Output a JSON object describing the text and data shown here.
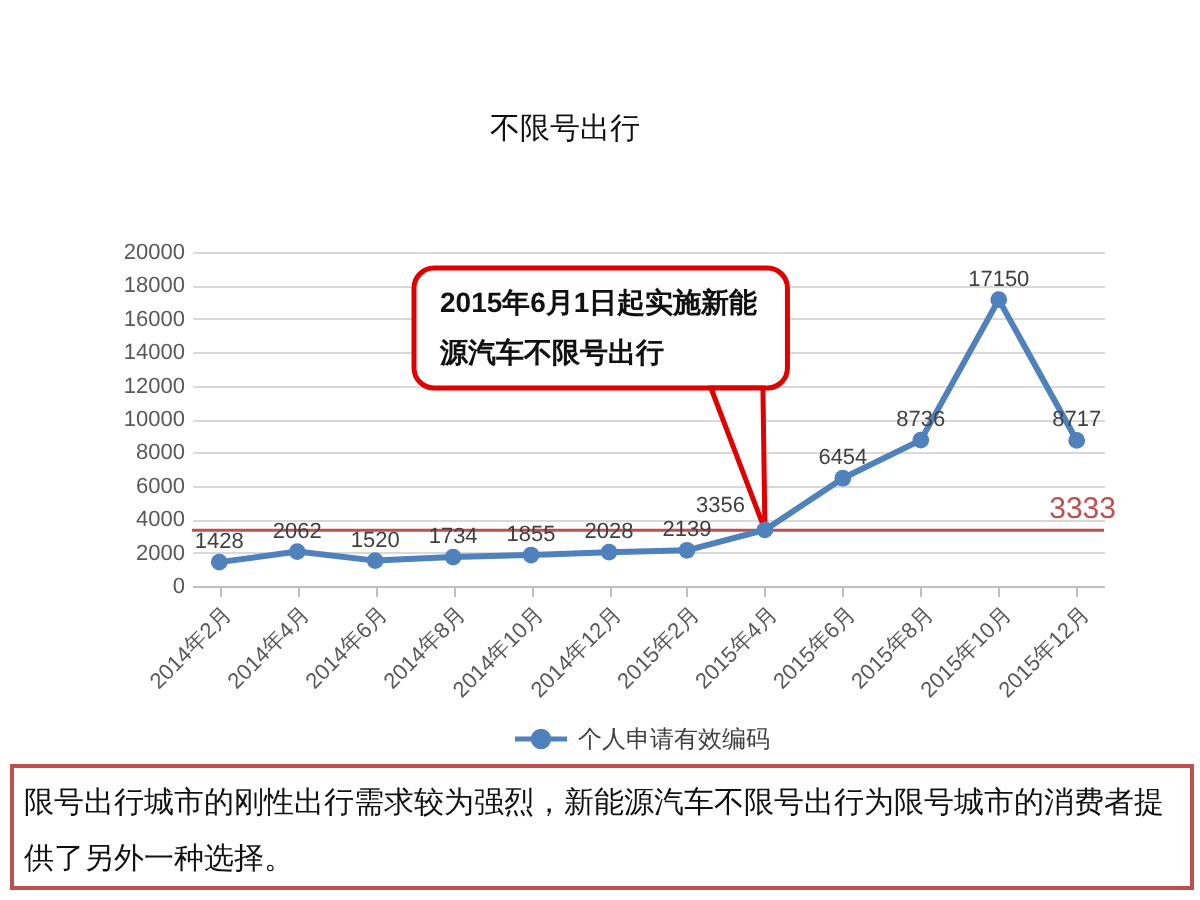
{
  "chart_data": {
    "type": "line",
    "title": "不限号出行",
    "categories": [
      "2014年2月",
      "2014年4月",
      "2014年6月",
      "2014年8月",
      "2014年10月",
      "2014年12月",
      "2015年2月",
      "2015年4月",
      "2015年6月",
      "2015年8月",
      "2015年10月",
      "2015年12月"
    ],
    "series": [
      {
        "name": "个人申请有效编码",
        "color": "#4f81bd",
        "values": [
          1428,
          2062,
          1520,
          1734,
          1855,
          2028,
          2139,
          3356,
          6454,
          8736,
          17150,
          8717
        ]
      }
    ],
    "ylim": [
      0,
      20000
    ],
    "yticks": [
      0,
      2000,
      4000,
      6000,
      8000,
      10000,
      12000,
      14000,
      16000,
      18000,
      20000
    ],
    "grid": "y",
    "legend": "bottom",
    "marker": "circle",
    "data_labels": true,
    "ref_lines": [
      {
        "axis": "y",
        "value": 3333,
        "label": "3333",
        "color": "#c0504d"
      }
    ],
    "annotations": [
      {
        "text": "2015年6月1日起实施新能源汽车不限号出行",
        "x": "2015年4月",
        "y": 3356
      },
      "限号出行城市的刚性出行需求较为强烈，新能源汽车不限号出行为限号城市的消费者提供了另外一种选择。"
    ]
  }
}
